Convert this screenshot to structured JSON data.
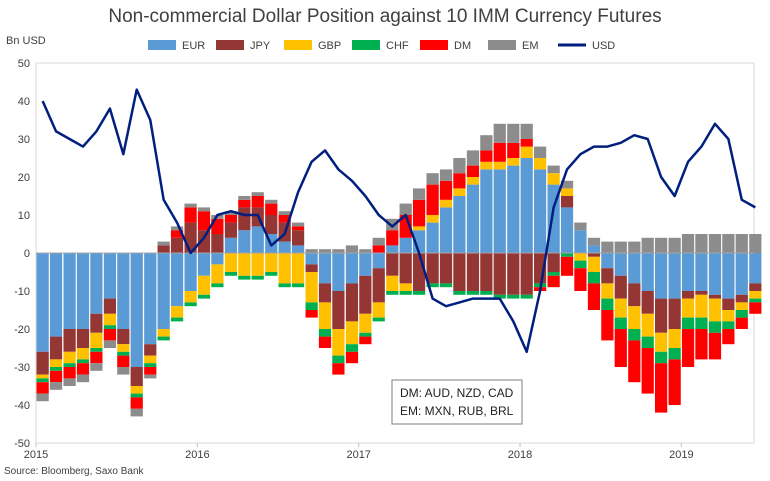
{
  "chart_data": {
    "type": "bar",
    "title": "Non-commercial Dollar Position against 10 IMM Currency Futures",
    "ylabel": "Bn USD",
    "xlabel": "",
    "source": "Source: Bloomberg, Saxo Bank",
    "ylim": [
      -50,
      50
    ],
    "yticks": [
      -50,
      -40,
      -30,
      -20,
      -10,
      0,
      10,
      20,
      30,
      40,
      50
    ],
    "xticks": [
      "2015",
      "2016",
      "2017",
      "2018",
      "2019"
    ],
    "xlim": [
      2015.0,
      2019.45
    ],
    "grid": false,
    "legend_position": "top",
    "legend": [
      "EUR",
      "JPY",
      "GBP",
      "CHF",
      "DM",
      "EM",
      "USD"
    ],
    "annotations": [
      "DM: AUD, NZD, CAD",
      "EM: MXN, RUB, BRL"
    ],
    "colors": {
      "EUR": "#5b9bd5",
      "JPY": "#943634",
      "GBP": "#ffc000",
      "CHF": "#00b050",
      "DM": "#ff0000",
      "EM": "#8c8c8c",
      "USD": "#001f7f"
    },
    "x": [
      2015.0,
      2015.083,
      2015.167,
      2015.25,
      2015.333,
      2015.417,
      2015.5,
      2015.583,
      2015.667,
      2015.75,
      2015.833,
      2015.917,
      2016.0,
      2016.083,
      2016.167,
      2016.25,
      2016.333,
      2016.417,
      2016.5,
      2016.583,
      2016.667,
      2016.75,
      2016.833,
      2016.917,
      2017.0,
      2017.083,
      2017.167,
      2017.25,
      2017.333,
      2017.417,
      2017.5,
      2017.583,
      2017.667,
      2017.75,
      2017.833,
      2017.917,
      2018.0,
      2018.083,
      2018.167,
      2018.25,
      2018.333,
      2018.417,
      2018.5,
      2018.583,
      2018.667,
      2018.75,
      2018.833,
      2018.917,
      2019.0,
      2019.083,
      2019.167,
      2019.25,
      2019.333,
      2019.417
    ],
    "series": [
      {
        "name": "EUR",
        "values": [
          -26,
          -22,
          -20,
          -20,
          -16,
          -12,
          -20,
          -30,
          -24,
          -20,
          -14,
          -10,
          -6,
          -3,
          4,
          6,
          7,
          5,
          3,
          2,
          -3,
          -8,
          -10,
          -8,
          -6,
          -4,
          2,
          4,
          6,
          8,
          12,
          15,
          18,
          22,
          22,
          23,
          25,
          22,
          18,
          12,
          6,
          2,
          -4,
          -6,
          -8,
          -10,
          -12,
          -12,
          -10,
          -10,
          -11,
          -12,
          -11,
          -8
        ]
      },
      {
        "name": "JPY",
        "values": [
          -6,
          -6,
          -6,
          -5,
          -5,
          -4,
          -4,
          -5,
          -3,
          2,
          4,
          8,
          6,
          5,
          4,
          6,
          5,
          5,
          5,
          4,
          -2,
          -5,
          -10,
          -10,
          -10,
          -9,
          -6,
          -8,
          -10,
          -8,
          -8,
          -10,
          -10,
          -10,
          -11,
          -11,
          -11,
          -8,
          -5,
          3,
          0,
          -1,
          -4,
          -6,
          -6,
          -6,
          -9,
          -8,
          -2,
          -1,
          -1,
          -3,
          -2,
          -2
        ]
      },
      {
        "name": "GBP",
        "values": [
          -1,
          -2,
          -3,
          -3,
          -4,
          -3,
          -2,
          -2,
          -2,
          -2,
          -3,
          -3,
          -5,
          -5,
          -5,
          -6,
          -6,
          -5,
          -8,
          -8,
          -8,
          -7,
          -7,
          -6,
          -5,
          -4,
          -4,
          -2,
          1,
          2,
          2,
          2,
          2,
          2,
          2,
          2,
          3,
          3,
          3,
          2,
          -2,
          -4,
          -4,
          -5,
          -6,
          -6,
          -5,
          -5,
          -5,
          -6,
          -6,
          -3,
          -2,
          -2
        ]
      },
      {
        "name": "CHF",
        "values": [
          -1,
          -1,
          -1,
          -1,
          -1,
          -1,
          -1,
          -1,
          -1,
          -1,
          -1,
          -1,
          -1,
          -1,
          -1,
          -1,
          -1,
          -1,
          -1,
          -1,
          -2,
          -2,
          -2,
          -2,
          -1,
          -1,
          -1,
          -1,
          -1,
          -1,
          -1,
          -1,
          -1,
          -1,
          -1,
          -1,
          -1,
          -1,
          -1,
          -1,
          -2,
          -3,
          -3,
          -3,
          -3,
          -3,
          -3,
          -3,
          -3,
          -3,
          -3,
          -2,
          -2,
          -1
        ]
      },
      {
        "name": "DM",
        "values": [
          -3,
          -3,
          -3,
          -3,
          -3,
          -3,
          -3,
          -3,
          -2,
          0,
          2,
          4,
          5,
          4,
          2,
          2,
          3,
          3,
          2,
          1,
          -2,
          -3,
          -3,
          -3,
          -2,
          2,
          4,
          6,
          7,
          8,
          5,
          4,
          3,
          3,
          5,
          4,
          2,
          -1,
          -3,
          -5,
          -6,
          -7,
          -8,
          -10,
          -11,
          -12,
          -13,
          -12,
          -10,
          -8,
          -7,
          -4,
          -3,
          -3
        ]
      },
      {
        "name": "EM",
        "values": [
          -2,
          -2,
          -2,
          -2,
          -2,
          -2,
          -2,
          -2,
          -1,
          1,
          1,
          1,
          1,
          1,
          1,
          1,
          1,
          1,
          1,
          1,
          1,
          1,
          1,
          2,
          1,
          2,
          3,
          3,
          3,
          3,
          3,
          4,
          4,
          4,
          5,
          5,
          4,
          3,
          2,
          2,
          2,
          2,
          3,
          3,
          3,
          4,
          4,
          4,
          5,
          5,
          5,
          5,
          5,
          5
        ]
      },
      {
        "name": "USD",
        "values": [
          40,
          32,
          30,
          28,
          32,
          38,
          26,
          43,
          35,
          14,
          8,
          0,
          4,
          10,
          11,
          10,
          10,
          2,
          5,
          16,
          24,
          27,
          22,
          19,
          15,
          10,
          7,
          10,
          0,
          -12,
          -14,
          -13,
          -12,
          -12,
          -12,
          -18,
          -26,
          -10,
          12,
          22,
          26,
          28,
          28,
          29,
          31,
          30,
          20,
          15,
          24,
          28,
          34,
          30,
          14,
          12
        ]
      }
    ]
  }
}
